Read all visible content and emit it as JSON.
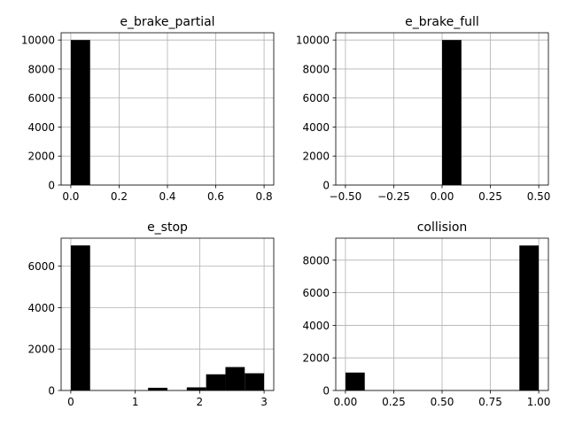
{
  "chart_data": [
    {
      "type": "bar",
      "title": "e_brake_partial",
      "xlim": [
        -0.04,
        0.84
      ],
      "ylim": [
        0,
        10500
      ],
      "xticks": [
        0.0,
        0.2,
        0.4,
        0.6,
        0.8
      ],
      "xtick_labels": [
        "0.0",
        "0.2",
        "0.4",
        "0.6",
        "0.8"
      ],
      "yticks": [
        0,
        2000,
        4000,
        6000,
        8000,
        10000
      ],
      "ytick_labels": [
        "0",
        "2000",
        "4000",
        "6000",
        "8000",
        "10000"
      ],
      "grid": true,
      "bins": [
        {
          "x0": 0.0,
          "x1": 0.08,
          "count": 10000
        }
      ]
    },
    {
      "type": "bar",
      "title": "e_brake_full",
      "xlim": [
        -0.55,
        0.55
      ],
      "ylim": [
        0,
        10500
      ],
      "xticks": [
        -0.5,
        -0.25,
        0.0,
        0.25,
        0.5
      ],
      "xtick_labels": [
        "−0.50",
        "−0.25",
        "0.00",
        "0.25",
        "0.50"
      ],
      "yticks": [
        0,
        2000,
        4000,
        6000,
        8000,
        10000
      ],
      "ytick_labels": [
        "0",
        "2000",
        "4000",
        "6000",
        "8000",
        "10000"
      ],
      "grid": true,
      "bins": [
        {
          "x0": 0.0,
          "x1": 0.1,
          "count": 10000
        }
      ]
    },
    {
      "type": "bar",
      "title": "e_stop",
      "xlim": [
        -0.15,
        3.15
      ],
      "ylim": [
        0,
        7350
      ],
      "xticks": [
        0,
        1,
        2,
        3
      ],
      "xtick_labels": [
        "0",
        "1",
        "2",
        "3"
      ],
      "yticks": [
        0,
        2000,
        4000,
        6000
      ],
      "ytick_labels": [
        "0",
        "2000",
        "4000",
        "6000"
      ],
      "grid": true,
      "bins": [
        {
          "x0": 0.0,
          "x1": 0.3,
          "count": 7000
        },
        {
          "x0": 1.2,
          "x1": 1.5,
          "count": 130
        },
        {
          "x0": 1.8,
          "x1": 2.1,
          "count": 150
        },
        {
          "x0": 2.1,
          "x1": 2.4,
          "count": 780
        },
        {
          "x0": 2.4,
          "x1": 2.7,
          "count": 1130
        },
        {
          "x0": 2.7,
          "x1": 3.0,
          "count": 830
        }
      ]
    },
    {
      "type": "bar",
      "title": "collision",
      "xlim": [
        -0.05,
        1.05
      ],
      "ylim": [
        0,
        9350
      ],
      "xticks": [
        0.0,
        0.25,
        0.5,
        0.75,
        1.0
      ],
      "xtick_labels": [
        "0.00",
        "0.25",
        "0.50",
        "0.75",
        "1.00"
      ],
      "yticks": [
        0,
        2000,
        4000,
        6000,
        8000
      ],
      "ytick_labels": [
        "0",
        "2000",
        "4000",
        "6000",
        "8000"
      ],
      "grid": true,
      "bins": [
        {
          "x0": 0.0,
          "x1": 0.1,
          "count": 1100
        },
        {
          "x0": 0.9,
          "x1": 1.0,
          "count": 8900
        }
      ]
    }
  ]
}
